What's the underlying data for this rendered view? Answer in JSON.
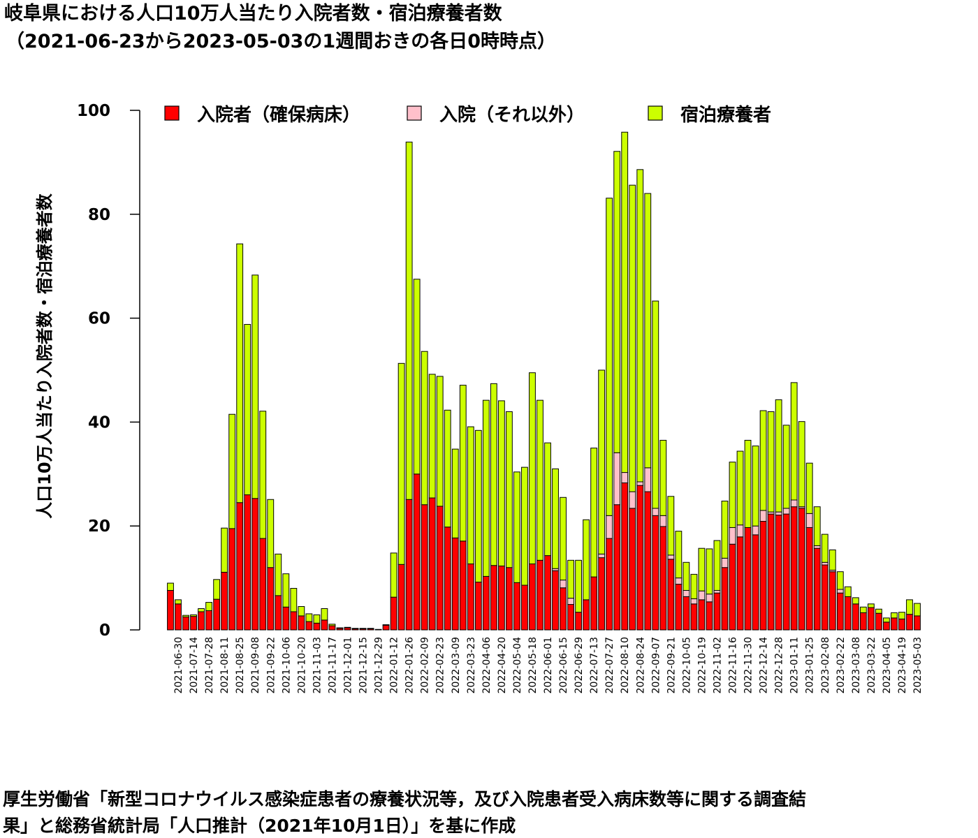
{
  "title": "岐阜県における人口10万人当たり入院者数・宿泊療養者数",
  "subtitle": "（2021-06-23から2023-05-03の1週間おきの各日0時時点）",
  "footer_line1": "厚生労働省「新型コロナウイルス感染症患者の療養状況等，及び入院患者受入病床数等に関する調査結",
  "footer_line2": "果」と総務省統計局「人口推計（2021年10月1日）」を基に作成",
  "chart_data": {
    "type": "bar",
    "stacked": true,
    "title": "岐阜県における人口10万人当たり入院者数・宿泊療養者数",
    "subtitle": "（2021-06-23から2023-05-03の1週間おきの各日0時時点）",
    "xlabel": "",
    "ylabel": "人口10万人当たり入院者数・宿泊療養者数",
    "ylim": [
      0,
      100
    ],
    "yticks": [
      0,
      20,
      40,
      60,
      80,
      100
    ],
    "grid": false,
    "legend_position": "top",
    "categories": [
      "2021-06-23",
      "2021-06-30",
      "2021-07-07",
      "2021-07-14",
      "2021-07-21",
      "2021-07-28",
      "2021-08-04",
      "2021-08-11",
      "2021-08-18",
      "2021-08-25",
      "2021-09-01",
      "2021-09-08",
      "2021-09-15",
      "2021-09-22",
      "2021-09-29",
      "2021-10-06",
      "2021-10-13",
      "2021-10-20",
      "2021-10-27",
      "2021-11-03",
      "2021-11-10",
      "2021-11-17",
      "2021-11-24",
      "2021-12-01",
      "2021-12-08",
      "2021-12-15",
      "2021-12-22",
      "2021-12-29",
      "2022-01-05",
      "2022-01-12",
      "2022-01-19",
      "2022-01-26",
      "2022-02-02",
      "2022-02-09",
      "2022-02-16",
      "2022-02-23",
      "2022-03-02",
      "2022-03-09",
      "2022-03-16",
      "2022-03-23",
      "2022-03-30",
      "2022-04-06",
      "2022-04-13",
      "2022-04-20",
      "2022-04-27",
      "2022-05-04",
      "2022-05-11",
      "2022-05-18",
      "2022-05-25",
      "2022-06-01",
      "2022-06-08",
      "2022-06-15",
      "2022-06-22",
      "2022-06-29",
      "2022-07-06",
      "2022-07-13",
      "2022-07-20",
      "2022-07-27",
      "2022-08-03",
      "2022-08-10",
      "2022-08-17",
      "2022-08-24",
      "2022-08-31",
      "2022-09-07",
      "2022-09-14",
      "2022-09-21",
      "2022-09-28",
      "2022-10-05",
      "2022-10-12",
      "2022-10-19",
      "2022-10-26",
      "2022-11-02",
      "2022-11-09",
      "2022-11-16",
      "2022-11-23",
      "2022-11-30",
      "2022-12-07",
      "2022-12-14",
      "2022-12-21",
      "2022-12-28",
      "2023-01-04",
      "2023-01-11",
      "2023-01-18",
      "2023-01-25",
      "2023-02-01",
      "2023-02-08",
      "2023-02-15",
      "2023-02-22",
      "2023-03-01",
      "2023-03-08",
      "2023-03-15",
      "2023-03-22",
      "2023-03-29",
      "2023-04-05",
      "2023-04-12",
      "2023-04-19",
      "2023-04-26",
      "2023-05-03"
    ],
    "tick_label_every": 2,
    "tick_label_offset": 1,
    "series": [
      {
        "name": "入院者（確保病床）",
        "color": "#ff0000",
        "values": [
          7.6,
          5.0,
          2.5,
          2.6,
          3.5,
          3.7,
          5.9,
          11.1,
          19.5,
          24.5,
          26.0,
          25.3,
          17.6,
          12.0,
          6.6,
          4.4,
          3.5,
          2.7,
          1.6,
          1.3,
          1.9,
          0.8,
          0.3,
          0.4,
          0.2,
          0.2,
          0.2,
          0.1,
          0.9,
          6.3,
          12.6,
          25.1,
          30.0,
          24.1,
          25.4,
          23.8,
          19.8,
          17.7,
          17.1,
          12.7,
          9.2,
          10.3,
          12.4,
          12.3,
          12.0,
          9.1,
          8.6,
          12.7,
          13.4,
          14.3,
          11.4,
          8.1,
          4.9,
          3.4,
          5.8,
          10.2,
          13.9,
          17.6,
          24.1,
          28.3,
          23.4,
          27.8,
          26.6,
          22.0,
          19.9,
          13.6,
          8.8,
          6.4,
          5.0,
          5.8,
          5.4,
          7.1,
          12.0,
          16.5,
          17.9,
          19.7,
          18.3,
          20.9,
          22.3,
          22.1,
          22.3,
          23.7,
          23.4,
          19.7,
          15.7,
          12.5,
          11.2,
          7.1,
          6.4,
          5.0,
          3.3,
          4.3,
          3.2,
          1.5,
          2.3,
          2.1,
          3.0,
          2.7
        ]
      },
      {
        "name": "入院（それ以外）",
        "color": "#ffc0cb",
        "values": [
          0.0,
          0.0,
          0.0,
          0.0,
          0.0,
          0.0,
          0.0,
          0.0,
          0.0,
          0.0,
          0.0,
          0.0,
          0.0,
          0.0,
          0.0,
          0.0,
          0.0,
          0.0,
          0.0,
          0.0,
          0.0,
          0.0,
          0.0,
          0.0,
          0.0,
          0.0,
          0.0,
          0.0,
          0.0,
          0.0,
          0.0,
          0.0,
          0.0,
          0.0,
          0.0,
          0.0,
          0.0,
          0.0,
          0.0,
          0.0,
          0.0,
          0.0,
          0.0,
          0.0,
          0.0,
          0.0,
          0.0,
          0.0,
          0.0,
          0.0,
          0.4,
          1.5,
          1.2,
          0.0,
          0.0,
          0.0,
          0.7,
          4.4,
          10.0,
          2.0,
          3.2,
          0.7,
          4.6,
          1.4,
          2.1,
          0.8,
          1.2,
          1.2,
          1.0,
          1.7,
          1.5,
          0.5,
          1.8,
          3.2,
          2.3,
          0.0,
          1.7,
          2.1,
          0.4,
          0.6,
          1.1,
          1.3,
          0.3,
          2.7,
          0.5,
          0.5,
          0.3,
          0.7,
          0.0,
          0.0,
          0.0,
          0.0,
          0.0,
          0.0,
          0.0,
          0.0,
          0.0,
          0.0
        ]
      },
      {
        "name": "宿泊療養者",
        "color": "#ccff00",
        "values": [
          1.4,
          0.8,
          0.3,
          0.3,
          0.6,
          1.6,
          3.8,
          8.5,
          22.0,
          49.8,
          32.8,
          43.0,
          24.5,
          13.1,
          8.0,
          6.4,
          4.5,
          1.8,
          1.5,
          1.6,
          2.2,
          0.3,
          0.1,
          0.1,
          0.1,
          0.1,
          0.1,
          0.0,
          0.1,
          8.5,
          38.7,
          68.8,
          37.5,
          29.5,
          23.8,
          25.0,
          22.5,
          17.1,
          30.0,
          26.4,
          29.2,
          33.9,
          35.0,
          31.8,
          30.0,
          21.3,
          22.7,
          36.8,
          30.8,
          21.7,
          19.2,
          15.9,
          7.3,
          10.0,
          15.4,
          24.8,
          35.4,
          61.1,
          58.0,
          65.5,
          59.0,
          60.1,
          52.8,
          39.9,
          14.5,
          11.3,
          9.0,
          5.4,
          4.7,
          8.2,
          8.7,
          9.6,
          11.0,
          12.6,
          14.2,
          16.8,
          15.4,
          19.2,
          19.3,
          21.6,
          16.0,
          22.6,
          16.4,
          9.7,
          7.5,
          5.4,
          3.9,
          3.4,
          1.9,
          1.2,
          1.1,
          0.7,
          0.8,
          0.8,
          1.0,
          1.3,
          2.8,
          2.4
        ]
      }
    ]
  }
}
